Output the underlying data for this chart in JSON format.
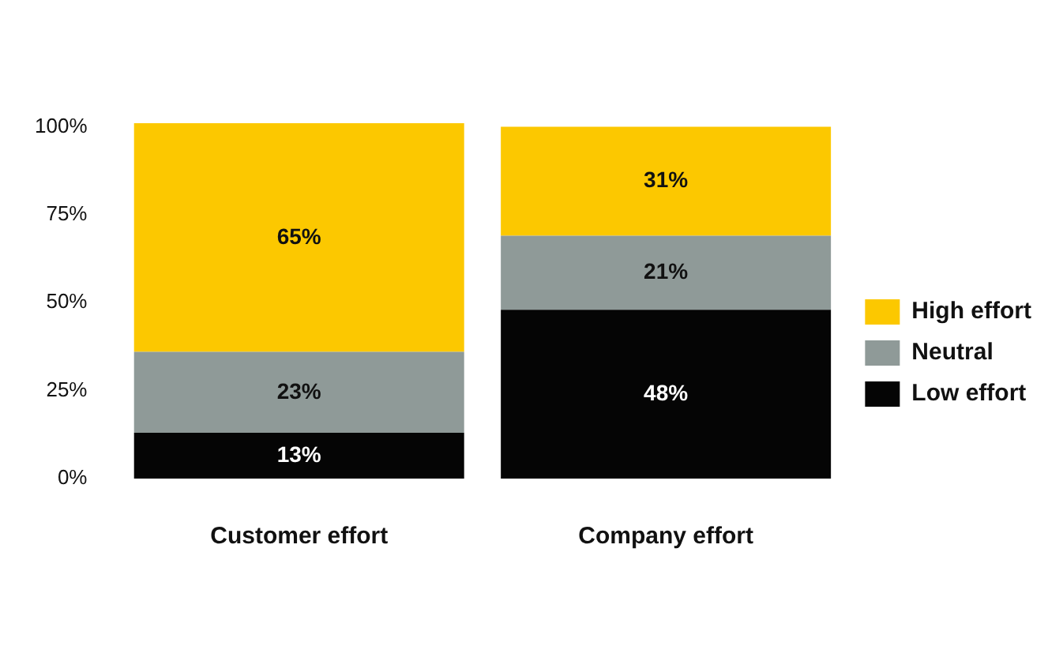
{
  "chart_data": {
    "type": "bar",
    "stacked": true,
    "categories": [
      "Customer effort",
      "Company effort"
    ],
    "series": [
      {
        "name": "Low effort",
        "color": "#050505",
        "values": [
          13,
          48
        ],
        "value_labels": [
          "13%",
          "48%"
        ]
      },
      {
        "name": "Neutral",
        "color": "#8f9a98",
        "values": [
          23,
          21
        ],
        "value_labels": [
          "23%",
          "21%"
        ]
      },
      {
        "name": "High effort",
        "color": "#fcc800",
        "values": [
          65,
          31
        ],
        "value_labels": [
          "65%",
          "31%"
        ]
      }
    ],
    "ylim": [
      0,
      101
    ],
    "yticks": [
      {
        "value": 0,
        "label": "0%"
      },
      {
        "value": 25,
        "label": "25%"
      },
      {
        "value": 50,
        "label": "50%"
      },
      {
        "value": 75,
        "label": "75%"
      },
      {
        "value": 100,
        "label": "100%"
      }
    ],
    "grid": false,
    "legend": "right"
  }
}
